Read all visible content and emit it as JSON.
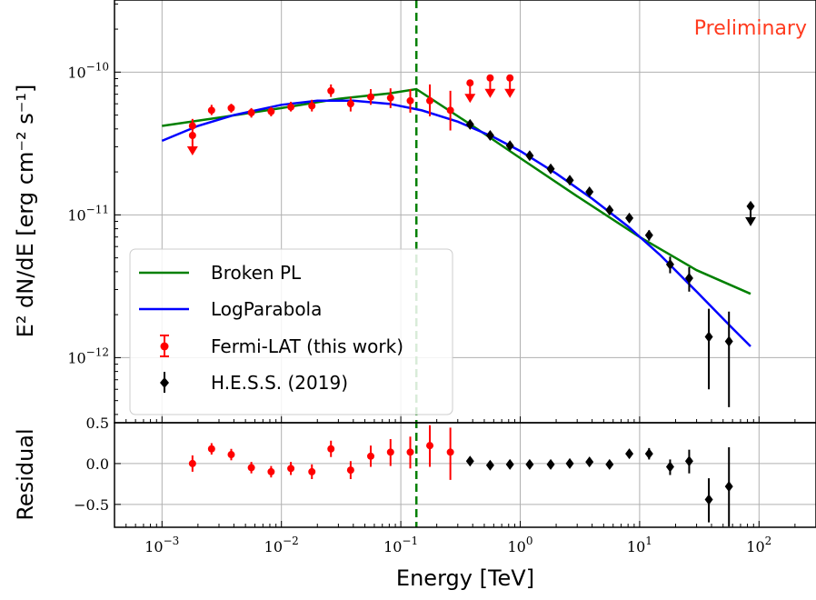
{
  "chart_data": {
    "type": "scatter",
    "annotation": "Preliminary",
    "annotation_color": "#ff3b1f",
    "xlabel": "Energy [TeV]",
    "ylabel_main": "E² dN/dE [erg cm⁻² s⁻¹]",
    "ylabel_residual": "Residual",
    "x_scale": "log",
    "xlim": [
      0.0004,
      300
    ],
    "main_panel": {
      "y_scale": "log",
      "ylim": [
        3.5e-13,
        3.2e-10
      ]
    },
    "residual_panel": {
      "y_scale": "linear",
      "ylim": [
        -0.78,
        0.5
      ],
      "yticks": [
        -0.5,
        0.0,
        0.5
      ],
      "yticklabels": [
        "−0.5",
        "0.0",
        "0.5"
      ]
    },
    "x_ticks": [
      0.001,
      0.01,
      0.1,
      1,
      10,
      100
    ],
    "x_tick_labels": [
      {
        "base": "10",
        "exp": "−3"
      },
      {
        "base": "10",
        "exp": "−2"
      },
      {
        "base": "10",
        "exp": "−1"
      },
      {
        "base": "10",
        "exp": "0"
      },
      {
        "base": "10",
        "exp": "1"
      },
      {
        "base": "10",
        "exp": "2"
      }
    ],
    "y_ticks_main": [
      1e-12,
      1e-11,
      1e-10
    ],
    "y_tick_labels_main": [
      {
        "base": "10",
        "exp": "−12"
      },
      {
        "base": "10",
        "exp": "−11"
      },
      {
        "base": "10",
        "exp": "−10"
      }
    ],
    "grid": true,
    "break_energy": 0.135,
    "legend": {
      "placement": "lower-left",
      "entries": [
        "Broken PL",
        "LogParabola",
        "Fermi-LAT (this work)",
        "H.E.S.S. (2019)"
      ]
    },
    "series": [
      {
        "name": "Broken PL",
        "kind": "line",
        "color": "#008000",
        "x": [
          0.001,
          0.003,
          0.01,
          0.03,
          0.08,
          0.135,
          0.4,
          1,
          3,
          10,
          30,
          85
        ],
        "y": [
          4.2e-11,
          4.8e-11,
          5.6e-11,
          6.5e-11,
          7.1e-11,
          7.6e-11,
          4.2e-11,
          2.5e-11,
          1.35e-11,
          7e-12,
          4.1e-12,
          2.8e-12
        ]
      },
      {
        "name": "LogParabola",
        "kind": "line",
        "color": "#0000ff",
        "x": [
          0.001,
          0.002,
          0.004,
          0.01,
          0.02,
          0.04,
          0.08,
          0.15,
          0.3,
          0.6,
          1,
          2,
          4,
          8,
          15,
          30,
          60,
          85
        ],
        "y": [
          3.3e-11,
          4.2e-11,
          5e-11,
          5.9e-11,
          6.3e-11,
          6.3e-11,
          6e-11,
          5.4e-11,
          4.5e-11,
          3.5e-11,
          2.8e-11,
          1.95e-11,
          1.3e-11,
          8.3e-12,
          5.2e-12,
          2.9e-12,
          1.6e-12,
          1.2e-12
        ]
      },
      {
        "name": "Fermi-LAT (this work)",
        "kind": "points",
        "color": "#ff0000",
        "marker": "circle",
        "points": [
          {
            "x": 0.0018,
            "y": 4.2e-11,
            "lo": 3.7e-11,
            "hi": 4.7e-11,
            "res": 0.0,
            "rlo": -0.1,
            "rhi": 0.1
          },
          {
            "x": 0.0026,
            "y": 5.4e-11,
            "lo": 5e-11,
            "hi": 5.9e-11,
            "res": 0.18,
            "rlo": 0.11,
            "rhi": 0.25
          },
          {
            "x": 0.0038,
            "y": 5.6e-11,
            "lo": 5.2e-11,
            "hi": 6e-11,
            "res": 0.11,
            "rlo": 0.04,
            "rhi": 0.18
          },
          {
            "x": 0.0056,
            "y": 5.2e-11,
            "lo": 4.8e-11,
            "hi": 5.6e-11,
            "res": -0.05,
            "rlo": -0.12,
            "rhi": 0.02
          },
          {
            "x": 0.0082,
            "y": 5.3e-11,
            "lo": 4.9e-11,
            "hi": 5.7e-11,
            "res": -0.1,
            "rlo": -0.17,
            "rhi": -0.03
          },
          {
            "x": 0.012,
            "y": 5.7e-11,
            "lo": 5.3e-11,
            "hi": 6.2e-11,
            "res": -0.06,
            "rlo": -0.14,
            "rhi": 0.02
          },
          {
            "x": 0.018,
            "y": 5.8e-11,
            "lo": 5.3e-11,
            "hi": 6.4e-11,
            "res": -0.1,
            "rlo": -0.19,
            "rhi": -0.01
          },
          {
            "x": 0.026,
            "y": 7.4e-11,
            "lo": 6.7e-11,
            "hi": 8.2e-11,
            "res": 0.18,
            "rlo": 0.08,
            "rhi": 0.28
          },
          {
            "x": 0.038,
            "y": 6e-11,
            "lo": 5.3e-11,
            "hi": 6.7e-11,
            "res": -0.08,
            "rlo": -0.19,
            "rhi": 0.03
          },
          {
            "x": 0.056,
            "y": 6.7e-11,
            "lo": 5.9e-11,
            "hi": 7.6e-11,
            "res": 0.09,
            "rlo": -0.04,
            "rhi": 0.22
          },
          {
            "x": 0.082,
            "y": 6.6e-11,
            "lo": 5.6e-11,
            "hi": 7.7e-11,
            "res": 0.14,
            "rlo": -0.03,
            "rhi": 0.3
          },
          {
            "x": 0.12,
            "y": 6.3e-11,
            "lo": 5.2e-11,
            "hi": 7.6e-11,
            "res": 0.14,
            "rlo": -0.06,
            "rhi": 0.33
          },
          {
            "x": 0.175,
            "y": 6.3e-11,
            "lo": 4.9e-11,
            "hi": 8.2e-11,
            "res": 0.22,
            "rlo": -0.04,
            "rhi": 0.47
          },
          {
            "x": 0.26,
            "y": 5.4e-11,
            "lo": 3.9e-11,
            "hi": 7.4e-11,
            "res": 0.14,
            "rlo": -0.2,
            "rhi": 0.44
          }
        ],
        "upper_limits": [
          {
            "x": 0.0018,
            "y": 3.6e-11
          },
          {
            "x": 0.38,
            "y": 8.4e-11
          },
          {
            "x": 0.56,
            "y": 9.1e-11
          },
          {
            "x": 0.82,
            "y": 9.1e-11
          }
        ]
      },
      {
        "name": "H.E.S.S. (2019)",
        "kind": "points",
        "color": "#000000",
        "marker": "diamond",
        "points": [
          {
            "x": 0.38,
            "y": 4.3e-11,
            "lo": 4.1e-11,
            "hi": 4.5e-11,
            "res": 0.03,
            "rlo": 0.0,
            "rhi": 0.06
          },
          {
            "x": 0.56,
            "y": 3.6e-11,
            "lo": 3.45e-11,
            "hi": 3.75e-11,
            "res": -0.02,
            "rlo": -0.05,
            "rhi": 0.01
          },
          {
            "x": 0.82,
            "y": 3.05e-11,
            "lo": 2.93e-11,
            "hi": 3.17e-11,
            "res": -0.01,
            "rlo": -0.04,
            "rhi": 0.02
          },
          {
            "x": 1.2,
            "y": 2.6e-11,
            "lo": 2.5e-11,
            "hi": 2.7e-11,
            "res": -0.01,
            "rlo": -0.04,
            "rhi": 0.02
          },
          {
            "x": 1.8,
            "y": 2.1e-11,
            "lo": 2.02e-11,
            "hi": 2.18e-11,
            "res": -0.01,
            "rlo": -0.04,
            "rhi": 0.02
          },
          {
            "x": 2.6,
            "y": 1.75e-11,
            "lo": 1.68e-11,
            "hi": 1.82e-11,
            "res": 0.0,
            "rlo": -0.03,
            "rhi": 0.03
          },
          {
            "x": 3.8,
            "y": 1.45e-11,
            "lo": 1.38e-11,
            "hi": 1.52e-11,
            "res": 0.02,
            "rlo": -0.02,
            "rhi": 0.05
          },
          {
            "x": 5.6,
            "y": 1.08e-11,
            "lo": 1.02e-11,
            "hi": 1.14e-11,
            "res": -0.01,
            "rlo": -0.05,
            "rhi": 0.03
          },
          {
            "x": 8.2,
            "y": 9.5e-12,
            "lo": 8.9e-12,
            "hi": 1.01e-11,
            "res": 0.12,
            "rlo": 0.07,
            "rhi": 0.17
          },
          {
            "x": 12,
            "y": 7.2e-12,
            "lo": 6.6e-12,
            "hi": 7.8e-12,
            "res": 0.12,
            "rlo": 0.05,
            "rhi": 0.19
          },
          {
            "x": 18,
            "y": 4.5e-12,
            "lo": 3.9e-12,
            "hi": 5.1e-12,
            "res": -0.04,
            "rlo": -0.14,
            "rhi": 0.05
          },
          {
            "x": 26,
            "y": 3.6e-12,
            "lo": 2.9e-12,
            "hi": 4.3e-12,
            "res": 0.03,
            "rlo": -0.12,
            "rhi": 0.17
          },
          {
            "x": 38,
            "y": 1.4e-12,
            "lo": 6e-13,
            "hi": 2.2e-12,
            "res": -0.44,
            "rlo": -0.72,
            "rhi": -0.18
          },
          {
            "x": 56,
            "y": 1.3e-12,
            "lo": 4.5e-13,
            "hi": 2.1e-12,
            "res": -0.28,
            "rlo": -0.77,
            "rhi": 0.2
          }
        ],
        "upper_limits": [
          {
            "x": 85,
            "y": 1.15e-11
          }
        ]
      }
    ]
  }
}
